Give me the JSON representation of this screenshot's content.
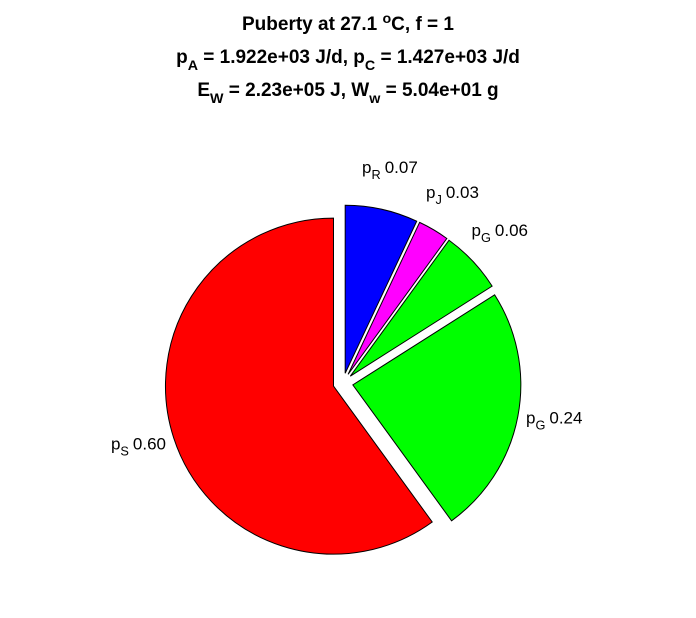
{
  "chart_data": {
    "type": "pie",
    "title": [
      [
        {
          "text": "Puberty at 27.1 "
        },
        {
          "text": "o",
          "script": "super"
        },
        {
          "text": "C, f = 1"
        }
      ],
      [
        {
          "text": "p"
        },
        {
          "text": "A",
          "script": "sub"
        },
        {
          "text": " = 1.922e+03 J/d,  p"
        },
        {
          "text": "C",
          "script": "sub"
        },
        {
          "text": " = 1.427e+03 J/d"
        }
      ],
      [
        {
          "text": "E"
        },
        {
          "text": "W",
          "script": "sub"
        },
        {
          "text": " = 2.23e+05 J, W"
        },
        {
          "text": "w",
          "script": "sub"
        },
        {
          "text": " = 5.04e+01 g"
        }
      ]
    ],
    "labels": [
      [
        {
          "text": "p"
        },
        {
          "text": "R",
          "script": "sub"
        }
      ],
      [
        {
          "text": "p"
        },
        {
          "text": "J",
          "script": "sub"
        }
      ],
      [
        {
          "text": "p"
        },
        {
          "text": "G",
          "script": "sub"
        }
      ],
      [
        {
          "text": "p"
        },
        {
          "text": "G",
          "script": "sub"
        }
      ],
      [
        {
          "text": "p"
        },
        {
          "text": "S",
          "script": "sub"
        }
      ]
    ],
    "values": [
      0.07,
      0.03,
      0.06,
      0.24,
      0.6
    ],
    "value_labels": [
      "0.07",
      "0.03",
      "0.06",
      "0.24",
      "0.60"
    ],
    "colors": [
      "#0000ff",
      "#ff00ff",
      "#00ff00",
      "#00ff00",
      "#ff0000"
    ],
    "exploded": true
  }
}
